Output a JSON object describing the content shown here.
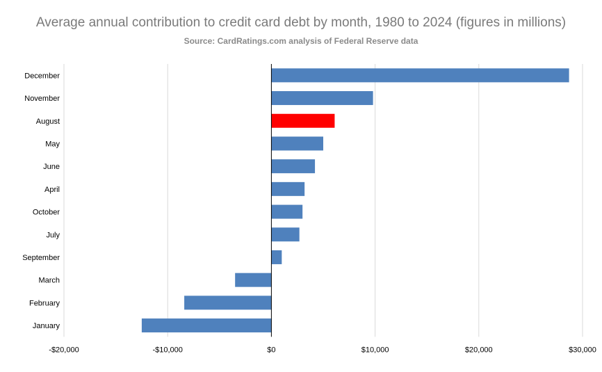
{
  "chart_data": {
    "type": "bar",
    "orientation": "horizontal",
    "title": "Average annual contribution to credit card debt by month, 1980  to 2024 (figures in millions)",
    "subtitle": "Source: CardRatings.com analysis of Federal Reserve data",
    "categories": [
      "December",
      "November",
      "August",
      "May",
      "June",
      "April",
      "October",
      "July",
      "September",
      "March",
      "February",
      "January"
    ],
    "values": [
      28700,
      9800,
      6100,
      5000,
      4200,
      3200,
      3000,
      2700,
      1000,
      -3500,
      -8400,
      -12500
    ],
    "highlight_category": "August",
    "xlim": [
      -20000,
      30000
    ],
    "xticks": [
      -20000,
      -10000,
      0,
      10000,
      20000,
      30000
    ],
    "xtick_labels": [
      "-$20,000",
      "-$10,000",
      "$0",
      "$10,000",
      "$20,000",
      "$30,000"
    ],
    "grid": "vertical",
    "colors": {
      "bar": "#4f81bd",
      "highlight": "#ff0000",
      "grid": "#d9d9d9",
      "zero_line": "#000000"
    }
  }
}
